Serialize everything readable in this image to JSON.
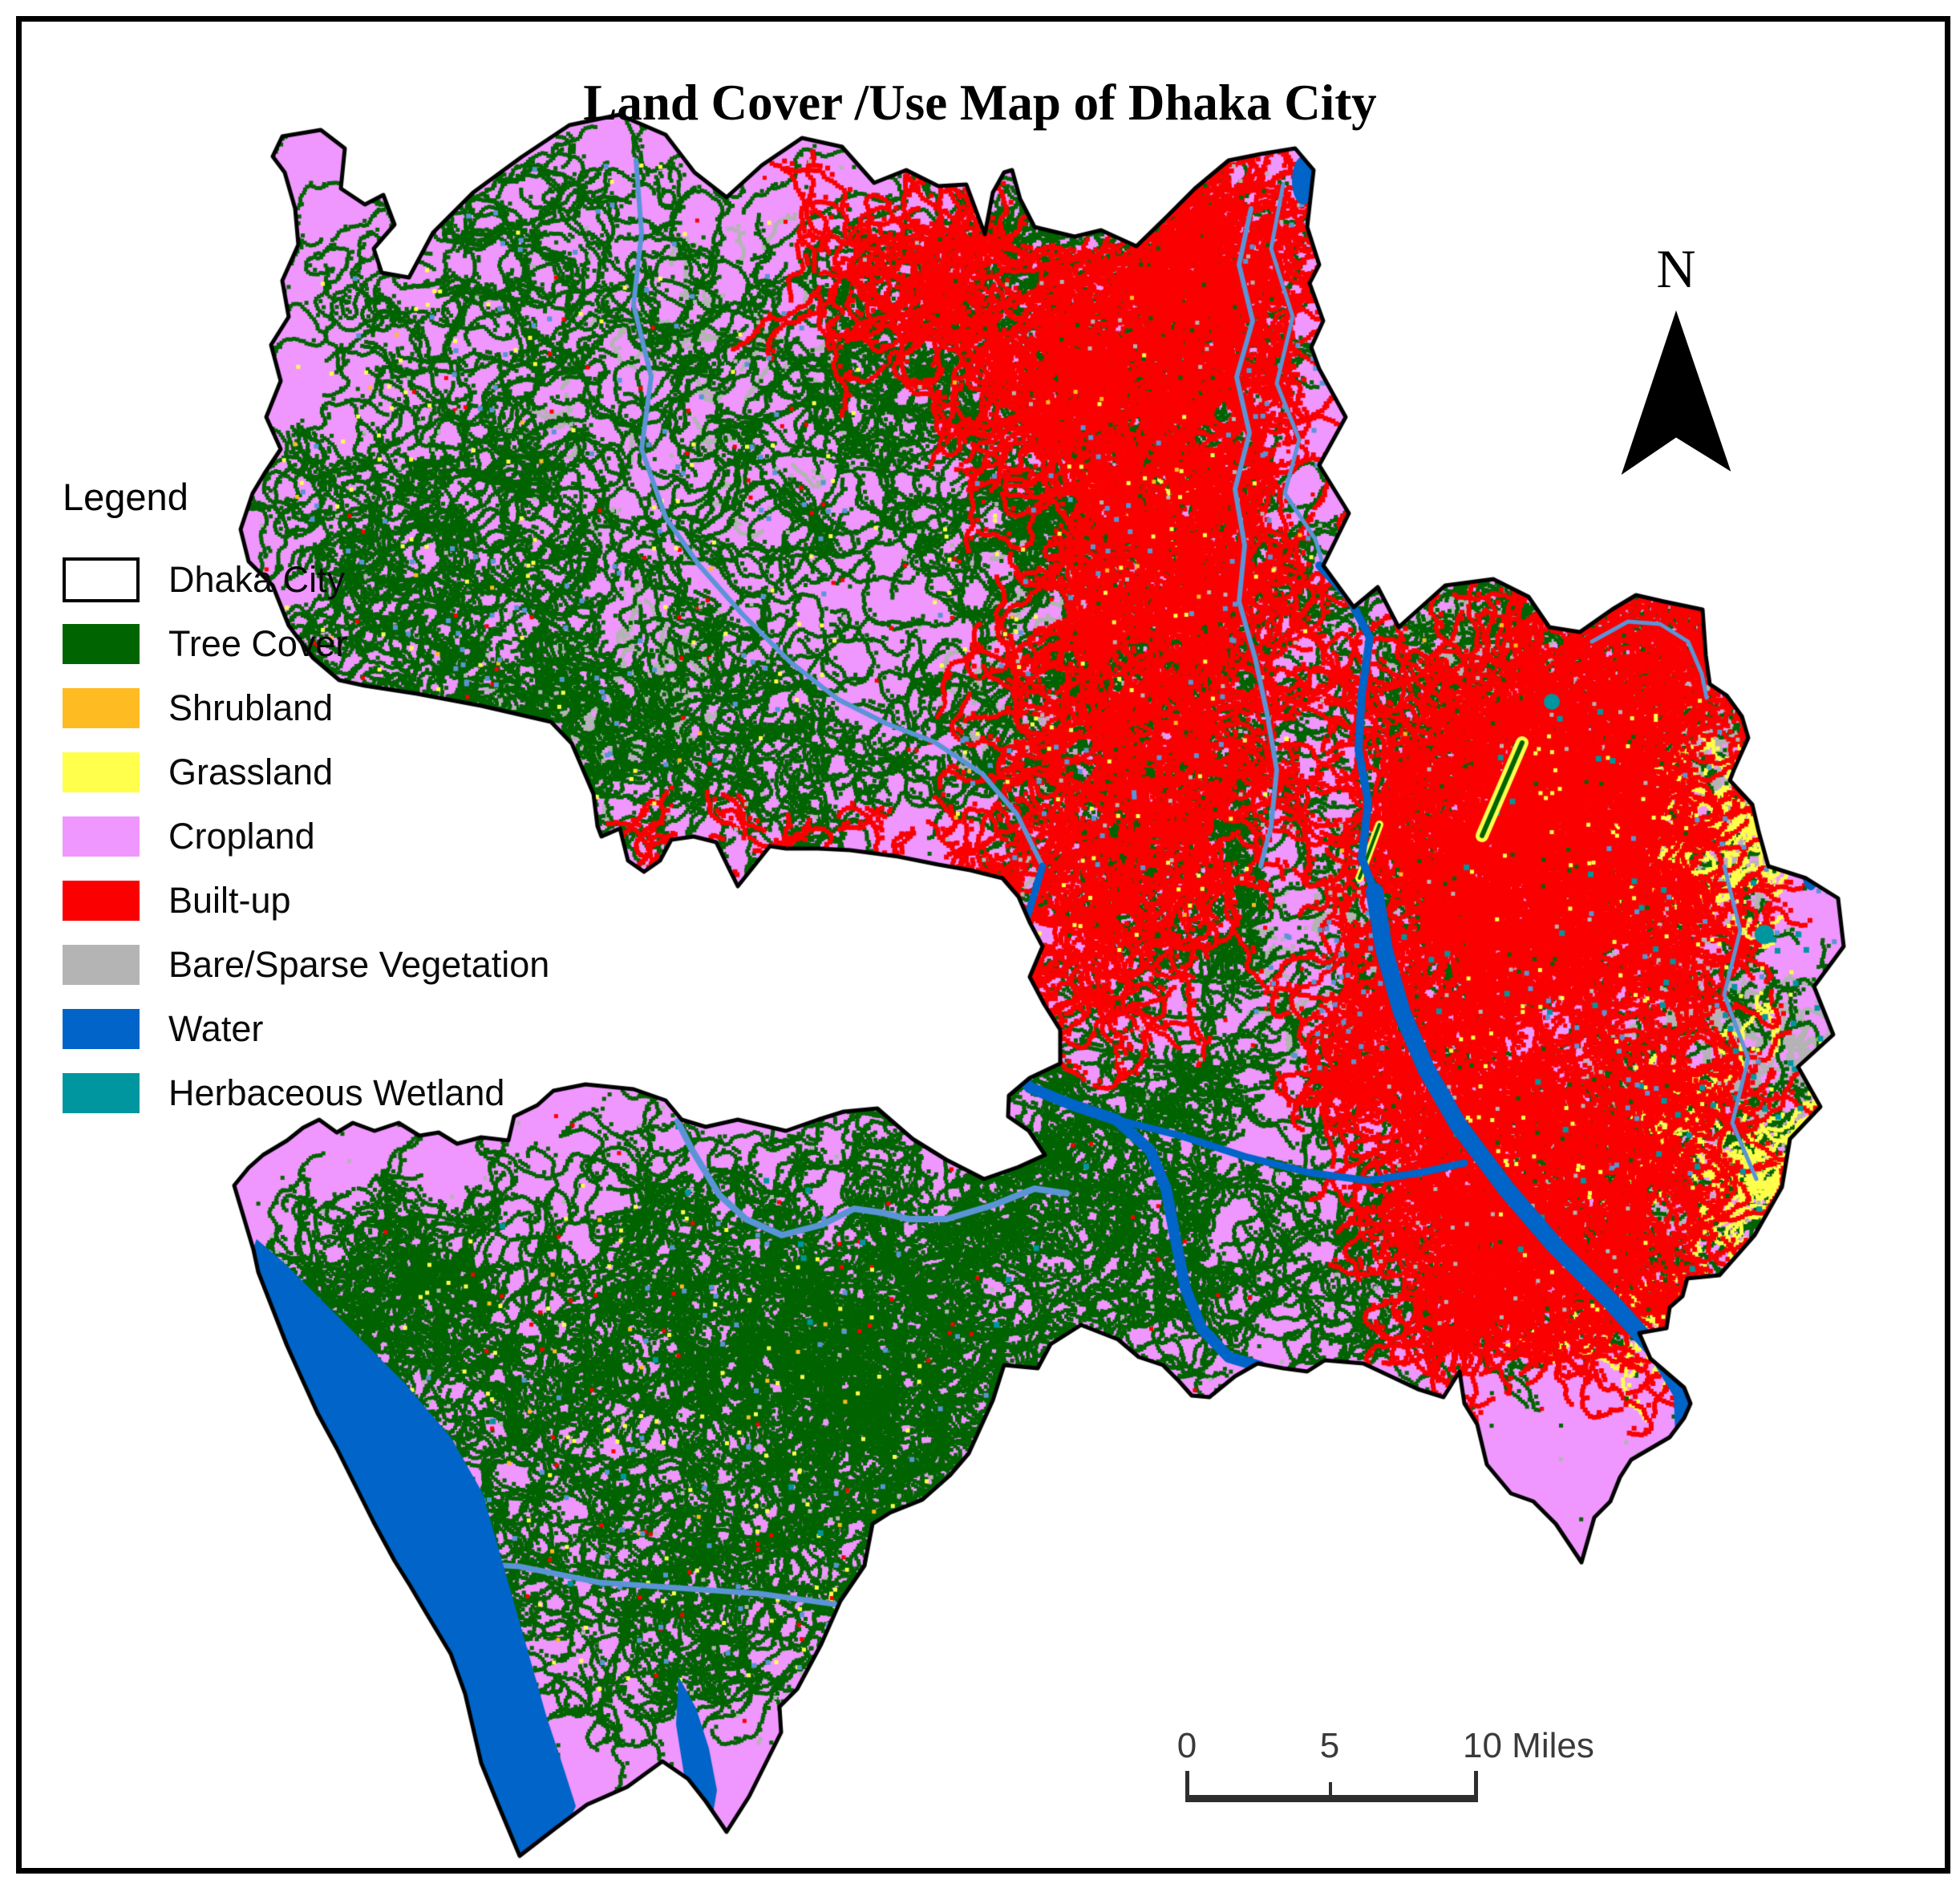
{
  "title": "Land Cover /Use Map of Dhaka City",
  "north": {
    "label": "N"
  },
  "legend": {
    "title": "Legend",
    "items": [
      {
        "label": "Dhaka City",
        "color": "#ffffff",
        "type": "outline"
      },
      {
        "label": "Tree Cover",
        "color": "#006400",
        "type": "fill"
      },
      {
        "label": "Shrubland",
        "color": "#ffbb22",
        "type": "fill"
      },
      {
        "label": "Grassland",
        "color": "#ffff4c",
        "type": "fill"
      },
      {
        "label": "Cropland",
        "color": "#f096ff",
        "type": "fill"
      },
      {
        "label": "Built-up",
        "color": "#fa0000",
        "type": "fill"
      },
      {
        "label": "Bare/Sparse Vegetation",
        "color": "#b4b4b4",
        "type": "fill"
      },
      {
        "label": "Water",
        "color": "#0064c8",
        "type": "fill"
      },
      {
        "label": "Herbaceous Wetland",
        "color": "#0096a0",
        "type": "fill"
      }
    ]
  },
  "scale_bar": {
    "labels": [
      "0",
      "5",
      "10 Miles"
    ]
  },
  "map_colors": {
    "cropland": "#f096ff",
    "tree": "#006400",
    "shrub": "#ffbb22",
    "grass": "#ffff4c",
    "built": "#fa0000",
    "bare": "#b4b4b4",
    "water": "#0064c8",
    "stream": "#5b94d6",
    "wetland": "#0096a0",
    "outline": "#000000",
    "frame": "#000000",
    "background": "#ffffff"
  }
}
